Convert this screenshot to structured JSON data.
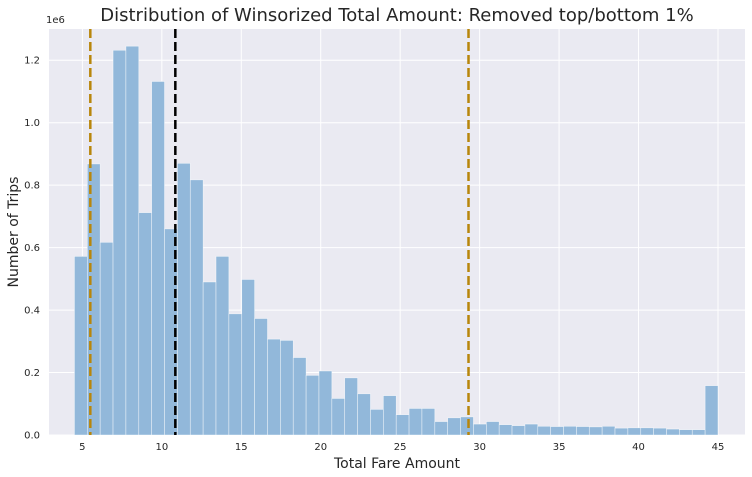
{
  "chart_data": {
    "type": "bar",
    "title": "Distribution of Winsorized Total Amount: Removed top/bottom 1%",
    "xlabel": "Total Fare Amount",
    "ylabel": "Number of Trips",
    "y_offset_label": "1e6",
    "xlim": [
      2.9,
      46.7
    ],
    "ylim": [
      0,
      1.3
    ],
    "x_ticks": [
      5,
      10,
      15,
      20,
      25,
      30,
      35,
      40,
      45
    ],
    "x_tick_labels": [
      "5",
      "10",
      "15",
      "20",
      "25",
      "30",
      "35",
      "40",
      "45"
    ],
    "y_ticks": [
      0,
      0.2,
      0.4,
      0.6,
      0.8,
      1.0,
      1.2
    ],
    "y_tick_labels": [
      "0.0",
      "0.2",
      "0.4",
      "0.6",
      "0.8",
      "1.0",
      "1.2"
    ],
    "grid": true,
    "bar_color": "#92b8da",
    "background_color": "#eaeaf2",
    "bins": {
      "start": 4.5,
      "width": 0.81,
      "values": [
        0.572,
        0.868,
        0.617,
        1.232,
        1.245,
        0.712,
        1.132,
        0.66,
        0.87,
        0.817,
        0.49,
        0.572,
        0.388,
        0.498,
        0.373,
        0.307,
        0.303,
        0.248,
        0.191,
        0.205,
        0.117,
        0.183,
        0.132,
        0.082,
        0.126,
        0.065,
        0.085,
        0.085,
        0.043,
        0.055,
        0.058,
        0.035,
        0.043,
        0.033,
        0.03,
        0.035,
        0.028,
        0.027,
        0.028,
        0.027,
        0.026,
        0.028,
        0.022,
        0.023,
        0.023,
        0.022,
        0.019,
        0.017,
        0.017,
        0.158
      ]
    },
    "reference_lines": [
      {
        "x": 5.5,
        "color": "#b8860b",
        "style": "dashed"
      },
      {
        "x": 10.85,
        "color": "#000000",
        "style": "dashed"
      },
      {
        "x": 29.3,
        "color": "#b8860b",
        "style": "dashed"
      }
    ]
  }
}
